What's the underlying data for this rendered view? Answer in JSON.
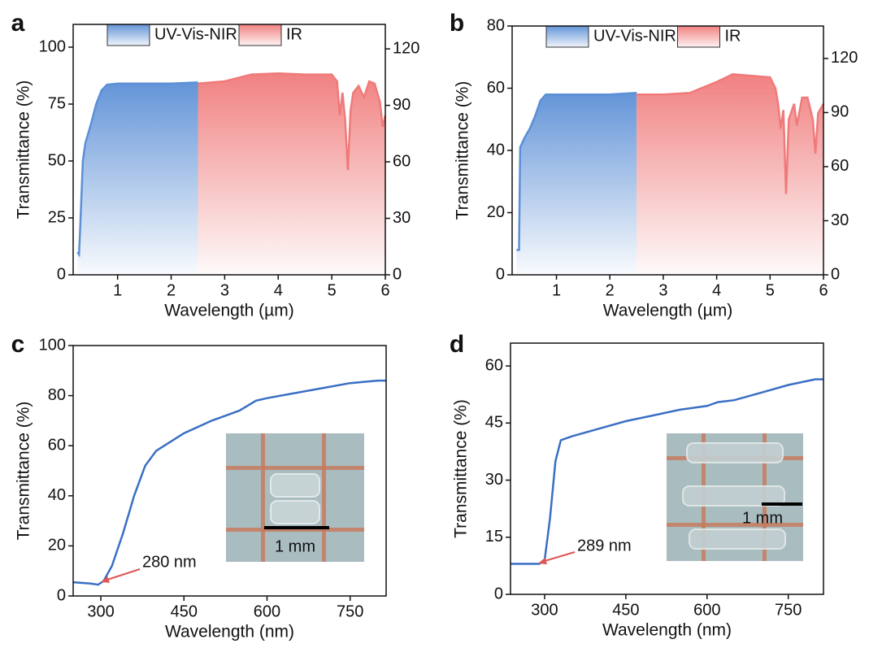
{
  "chart_data": [
    {
      "type": "area",
      "label": "a",
      "x_label": "Wavelength (µm)",
      "y_label": "Transmittance (%)",
      "legend": "top",
      "xlim": [
        0.17,
        6
      ],
      "xticks": [
        1,
        2,
        3,
        4,
        5,
        6
      ],
      "ylim": [
        0,
        110
      ],
      "yticks": [
        0,
        25,
        50,
        75,
        100
      ],
      "y2lim": [
        0,
        133
      ],
      "y2ticks": [
        0,
        30,
        60,
        90,
        120
      ],
      "series": [
        {
          "name": "UV-Vis-NIR",
          "color": "#5b8fd6",
          "x": [
            0.25,
            0.28,
            0.3,
            0.35,
            0.4,
            0.5,
            0.6,
            0.7,
            0.8,
            1,
            1.5,
            2,
            2.5
          ],
          "values": [
            10,
            9,
            20,
            50,
            58,
            66,
            75,
            81,
            83.5,
            84,
            84,
            84,
            84.5
          ]
        },
        {
          "name": "IR",
          "color": "#f07a7a",
          "x": [
            2.5,
            3,
            3.5,
            4,
            4.5,
            5,
            5.1,
            5.15,
            5.2,
            5.25,
            5.3,
            5.35,
            5.4,
            5.5,
            5.6,
            5.7,
            5.8,
            5.9,
            5.95,
            6
          ],
          "values": [
            84,
            85,
            88,
            88.5,
            88,
            88,
            85,
            70,
            80,
            68,
            46,
            72,
            80,
            83,
            78,
            85,
            84,
            76,
            65,
            70
          ]
        }
      ]
    },
    {
      "type": "area",
      "label": "b",
      "x_label": "Wavelength (µm)",
      "y_label": "Transmittance (%)",
      "legend": "top",
      "xlim": [
        0.17,
        6
      ],
      "xticks": [
        1,
        2,
        3,
        4,
        5,
        6
      ],
      "ylim": [
        0,
        80
      ],
      "yticks": [
        0,
        20,
        40,
        60,
        80
      ],
      "y2lim": [
        0,
        138
      ],
      "y2ticks": [
        0,
        30,
        60,
        90,
        120
      ],
      "series": [
        {
          "name": "UV-Vis-NIR",
          "color": "#5b8fd6",
          "x": [
            0.25,
            0.3,
            0.32,
            0.4,
            0.5,
            0.6,
            0.7,
            0.8,
            1,
            1.5,
            2,
            2.5
          ],
          "values": [
            8,
            8,
            41,
            44,
            47,
            51,
            56,
            58,
            58,
            58,
            58,
            58.5
          ]
        },
        {
          "name": "IR",
          "color": "#f07a7a",
          "x": [
            2.5,
            3,
            3.5,
            4,
            4.3,
            5,
            5.1,
            5.15,
            5.2,
            5.25,
            5.3,
            5.35,
            5.45,
            5.5,
            5.6,
            5.7,
            5.8,
            5.85,
            5.9,
            6
          ],
          "values": [
            58,
            58,
            58.5,
            62,
            64.5,
            63.5,
            60,
            55,
            47,
            53,
            26,
            50,
            55,
            48,
            57,
            57,
            50,
            39,
            52,
            55
          ]
        }
      ]
    },
    {
      "type": "line",
      "label": "c",
      "x_label": "Wavelength (nm)",
      "y_label": "Transmittance (%)",
      "annotation": "280 nm",
      "inset_label": "1 mm",
      "xlim": [
        250,
        815
      ],
      "xticks": [
        300,
        450,
        600,
        750
      ],
      "ylim": [
        0,
        100
      ],
      "yticks": [
        0,
        20,
        40,
        60,
        80,
        100
      ],
      "color": "#3a6fc4",
      "x": [
        250,
        280,
        295,
        305,
        320,
        340,
        360,
        380,
        400,
        450,
        500,
        550,
        580,
        600,
        650,
        700,
        750,
        800,
        815
      ],
      "values": [
        5.5,
        5,
        4.5,
        6,
        12,
        25,
        40,
        52,
        58,
        65,
        70,
        74,
        78,
        79,
        81,
        83,
        85,
        86,
        86
      ]
    },
    {
      "type": "line",
      "label": "d",
      "x_label": "Wavelength (nm)",
      "y_label": "Transmittance (%)",
      "annotation": "289 nm",
      "inset_label": "1 mm",
      "xlim": [
        237,
        815
      ],
      "xticks": [
        300,
        450,
        600,
        750
      ],
      "ylim": [
        0,
        66
      ],
      "yticks": [
        0,
        15,
        30,
        45,
        60
      ],
      "color": "#3a6fc4",
      "x": [
        237,
        290,
        300,
        310,
        320,
        330,
        350,
        400,
        450,
        500,
        550,
        600,
        620,
        650,
        700,
        750,
        800,
        815
      ],
      "values": [
        8,
        8,
        9,
        20,
        35,
        40.5,
        41.5,
        43.5,
        45.5,
        47,
        48.5,
        49.5,
        50.5,
        51,
        53,
        55,
        56.5,
        56.5
      ]
    }
  ]
}
